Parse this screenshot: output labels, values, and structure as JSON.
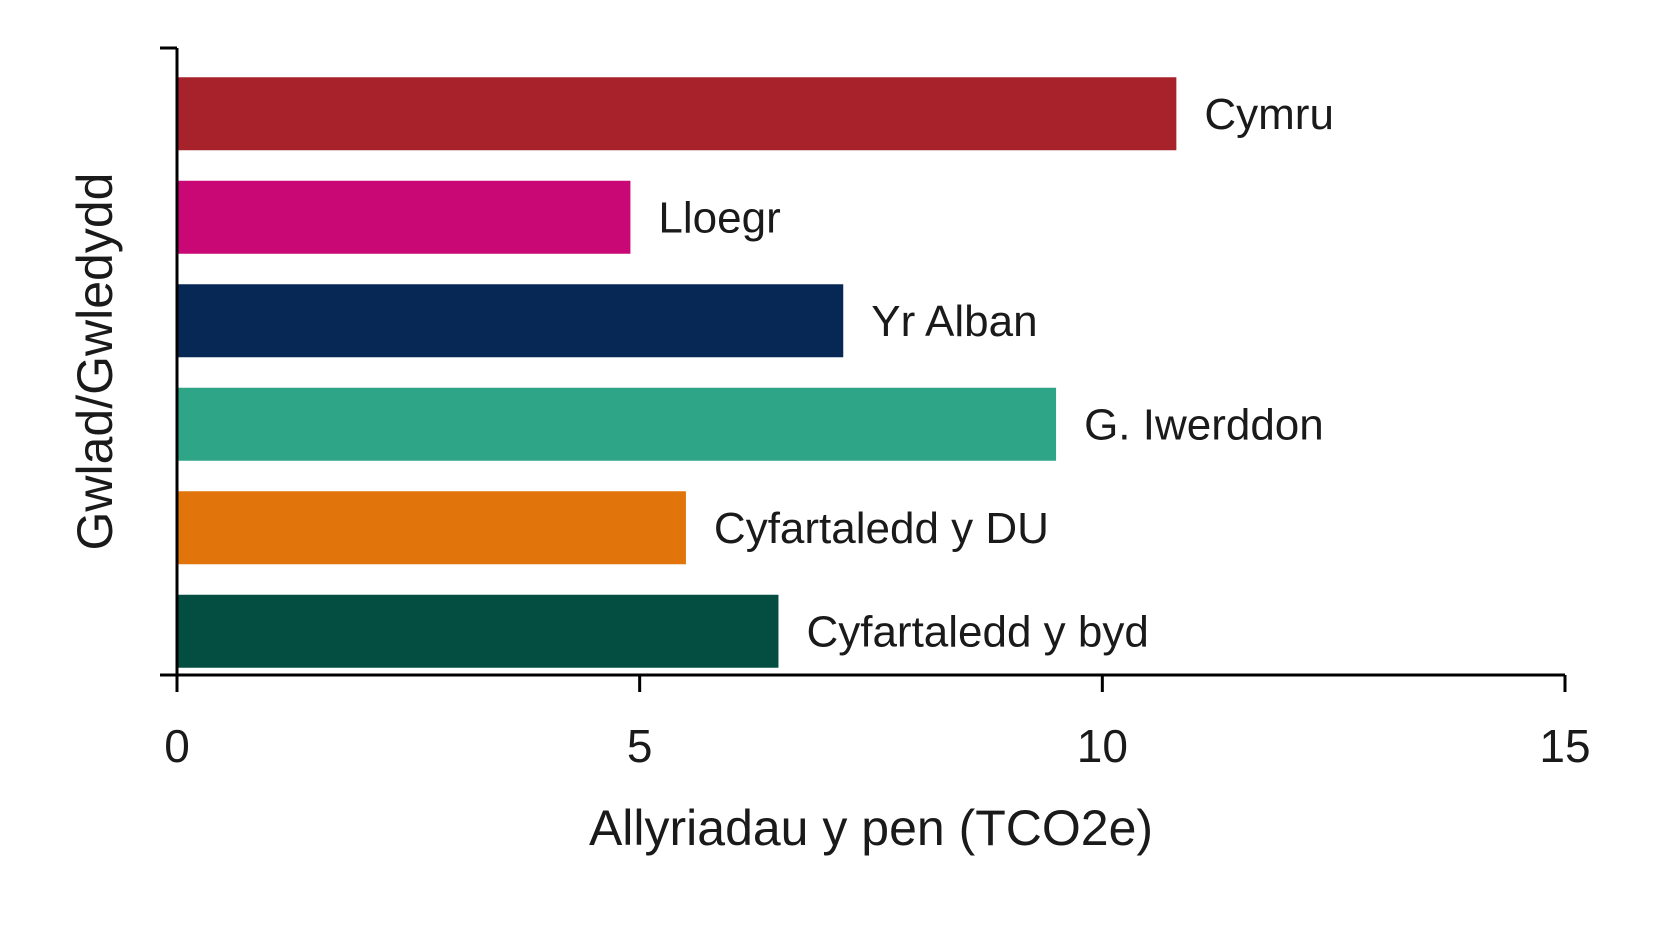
{
  "chart_data": {
    "type": "bar",
    "orientation": "horizontal",
    "title": "",
    "xlabel": "Allyriadau y pen (TCO2e)",
    "ylabel": "Gwlad/Gwledydd",
    "xlim": [
      0,
      15
    ],
    "xticks": [
      "0",
      "5",
      "10",
      "15"
    ],
    "grid": false,
    "legend": "none",
    "categories": [
      "Cymru",
      "Lloegr",
      "Yr Alban",
      "G. Iwerddon",
      "Cyfartaledd y DU",
      "Cyfartaledd y byd"
    ],
    "values": [
      10.8,
      4.9,
      7.2,
      9.5,
      5.5,
      6.5
    ],
    "colors": [
      "#a8222c",
      "#c90876",
      "#072754",
      "#2ea587",
      "#e1740b",
      "#044d41"
    ]
  }
}
